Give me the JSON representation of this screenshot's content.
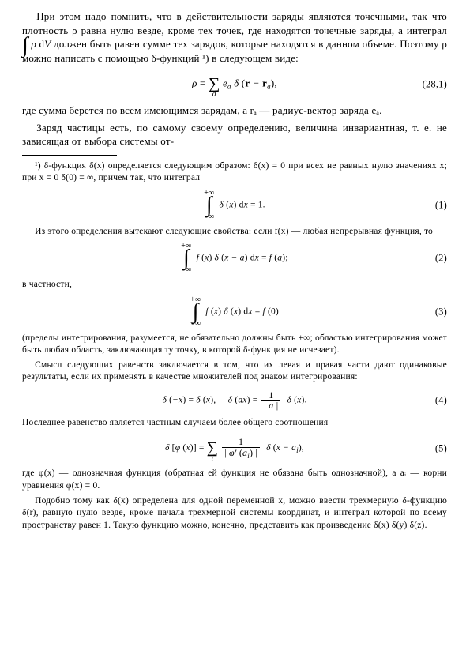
{
  "body": {
    "p1": "При этом надо помнить, что в действительности заряды являются точечными, так что плотность ρ равна нулю везде, кроме тех точек, где находятся точечные заряды, а интеграл ∫ ρ dV должен быть равен сумме тех зарядов, которые находятся в данном объеме. Поэтому ρ можно написать с помощью δ-функций ¹) в следующем виде:",
    "eq1_num": "(28,1)",
    "p2": "где сумма берется по всем имеющимся зарядам, а rₐ — радиус-вектор заряда eₐ.",
    "p3": "Заряд частицы есть, по самому своему определению, величина инвариантная, т. е. не зависящая от выбора системы от-"
  },
  "footnote": {
    "f1a": "¹) δ-функция δ(x) определяется следующим образом: δ(x) = 0 при всех не равных нулю значениях x; при x = 0  δ(0) = ∞, причем так, что интеграл",
    "eq1_num": "(1)",
    "f2": "Из этого определения вытекают следующие свойства: если f(x) — любая непрерывная функция, то",
    "eq2_num": "(2)",
    "f3": "в частности,",
    "eq3_num": "(3)",
    "f4": "(пределы интегрирования, разумеется, не обязательно должны быть ±∞; областью интегрирования может быть любая область, заключающая ту точку, в которой δ-функция не исчезает).",
    "f5": "Смысл следующих равенств заключается в том, что их левая и правая части дают одинаковые результаты, если их применять в качестве множителей под знаком интегрирования:",
    "eq4_num": "(4)",
    "f6": "Последнее равенство является частным случаем более общего соотношения",
    "eq5_num": "(5)",
    "f7": "где φ(x) — однозначная функция (обратная ей функция не обязана быть однозначной), а aᵢ — корни уравнения φ(x) = 0.",
    "f8": "Подобно тому как δ(x) определена для одной переменной x, можно ввести трехмерную δ-функцию δ(r), равную нулю везде, кроме начала трехмерной системы координат, и интеграл которой по всему пространству равен 1. Такую функцию можно, конечно, представить как произведение δ(x) δ(y) δ(z)."
  }
}
